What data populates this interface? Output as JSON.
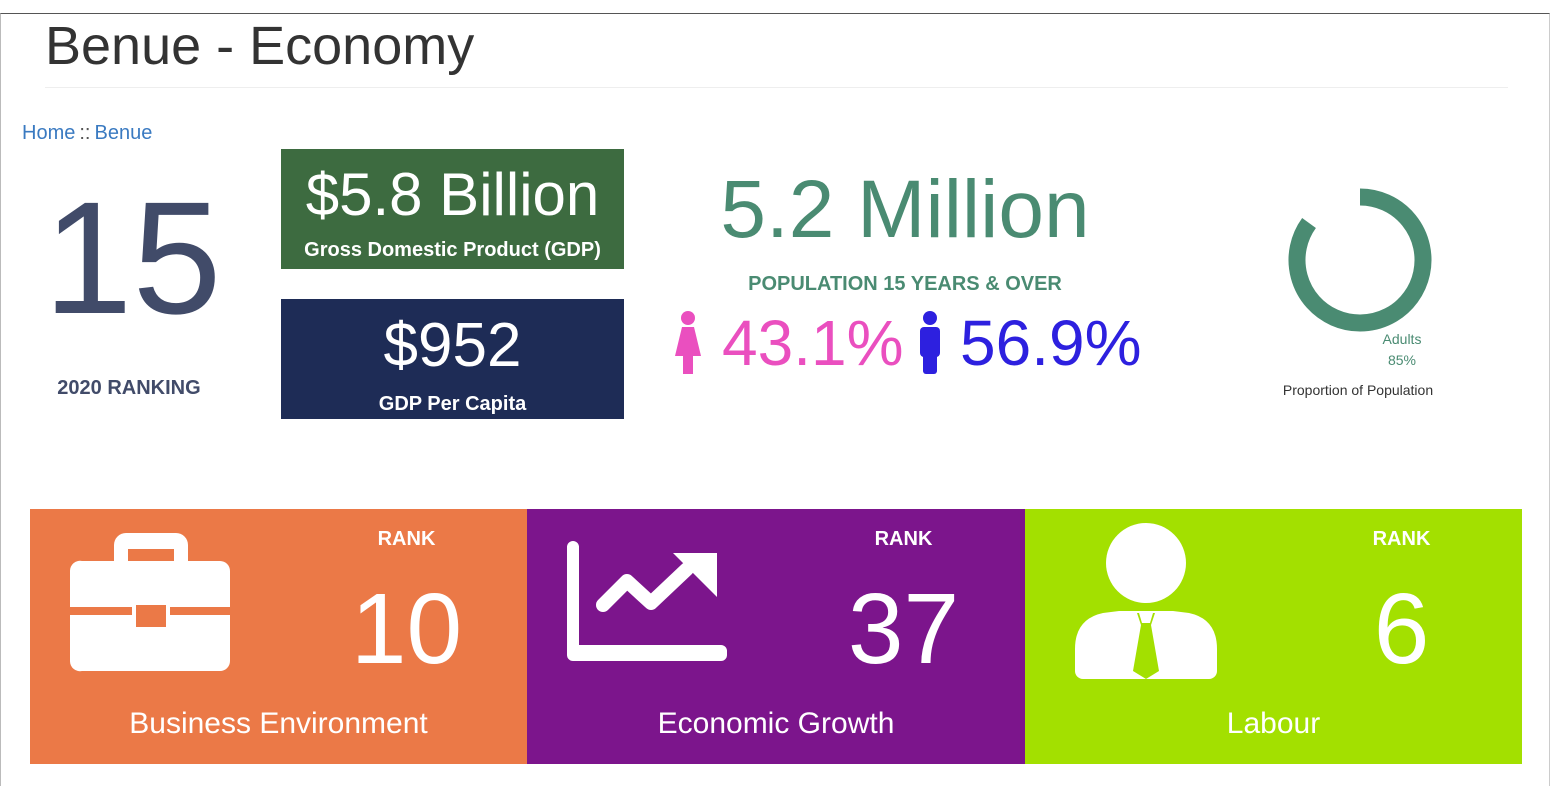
{
  "page": {
    "title": "Benue - Economy"
  },
  "breadcrumb": {
    "home": "Home",
    "separator": "::",
    "current": "Benue"
  },
  "ranking": {
    "value": "15",
    "caption": "2020 RANKING"
  },
  "gdp": {
    "value": "$5.8 Billion",
    "label": "Gross Domestic Product (GDP)",
    "color": "#3d6b40"
  },
  "gdp_per_capita": {
    "value": "$952",
    "label": "GDP Per Capita",
    "color": "#1e2c56"
  },
  "population": {
    "total": "5.2 Million",
    "caption": "POPULATION 15 YEARS & OVER",
    "female_pct": "43.1%",
    "male_pct": "56.9%",
    "female_icon": "female-icon",
    "male_icon": "male-icon",
    "female_color": "#ea4fbf",
    "male_color": "#2d20df"
  },
  "proportion": {
    "label": "Adults",
    "value_text": "85%",
    "value": 85,
    "caption": "Proportion of Population",
    "color": "#4a8b72"
  },
  "tiles": [
    {
      "name": "Business Environment",
      "rank_label": "RANK",
      "rank": "10",
      "icon": "briefcase-icon",
      "color": "#eb7947"
    },
    {
      "name": "Economic Growth",
      "rank_label": "RANK",
      "rank": "37",
      "icon": "trend-up-icon",
      "color": "#7c158c"
    },
    {
      "name": "Labour",
      "rank_label": "RANK",
      "rank": "6",
      "icon": "businessman-icon",
      "color": "#a3e000"
    }
  ]
}
